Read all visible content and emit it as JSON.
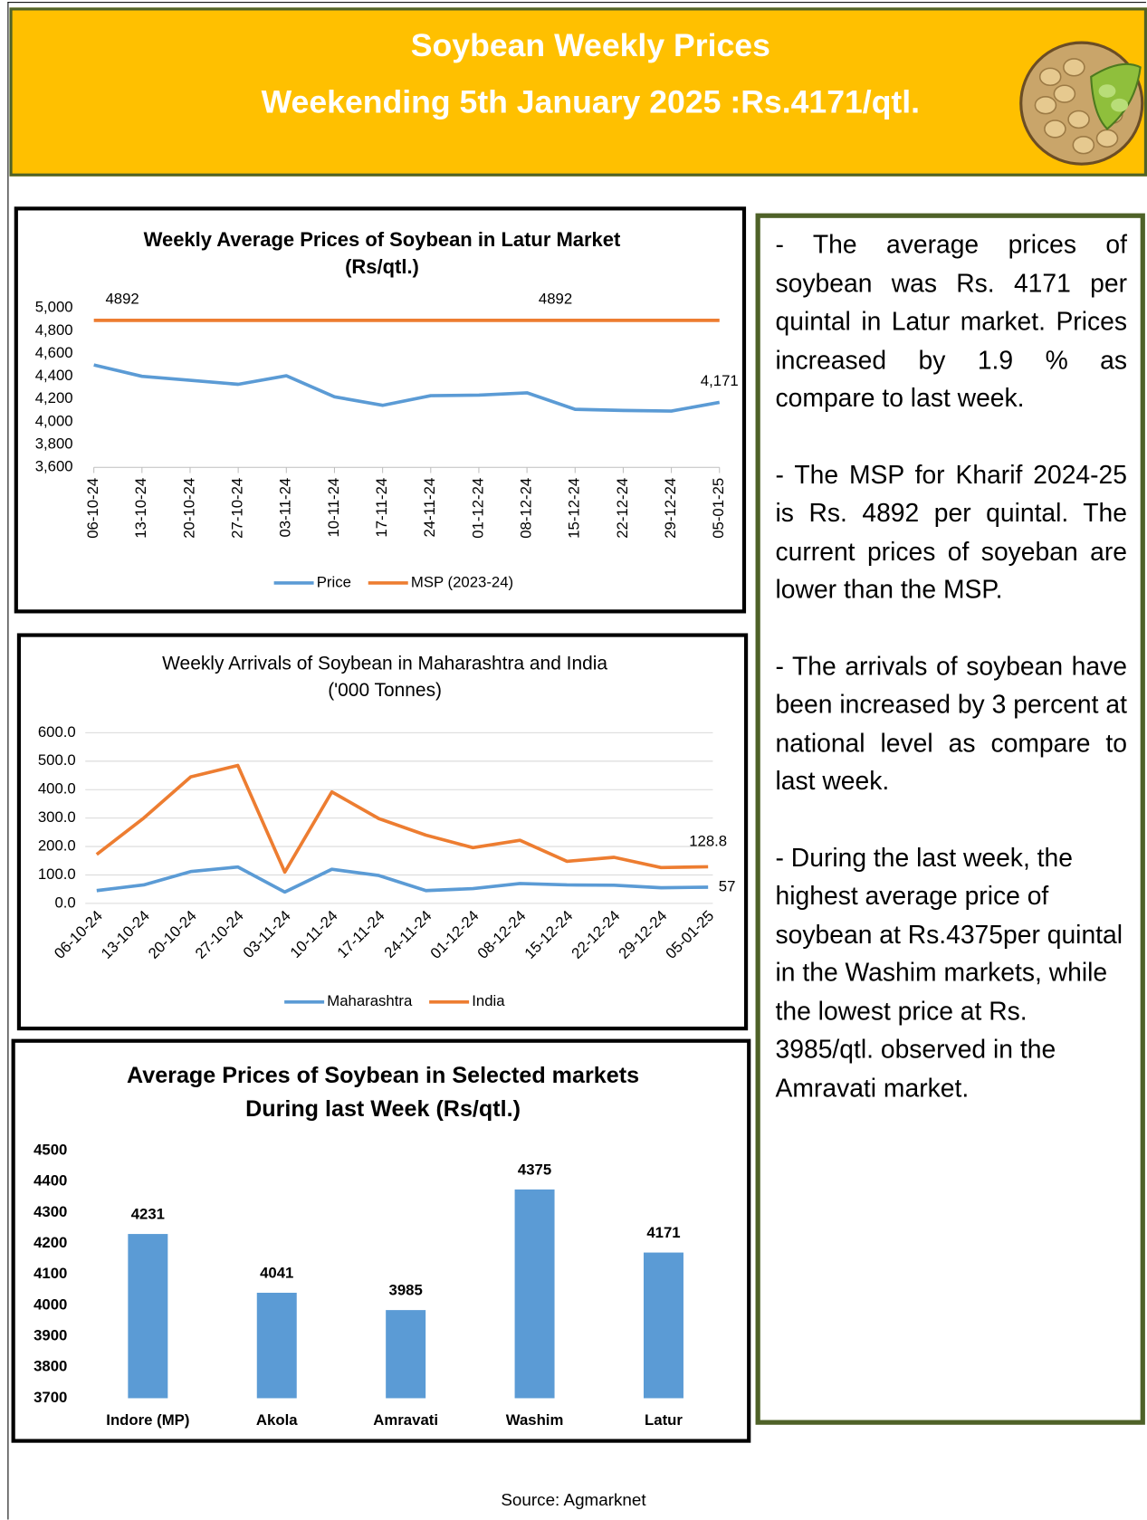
{
  "header": {
    "title": "Soybean Weekly Prices",
    "subtitle": "Weekending 5th January 2025  :Rs.4171/qtl."
  },
  "chart_data": [
    {
      "type": "line",
      "title": "Weekly Average Prices of Soybean in Latur Market",
      "subtitle": "(Rs/qtl.)",
      "categories": [
        "06-10-24",
        "13-10-24",
        "20-10-24",
        "27-10-24",
        "03-11-24",
        "10-11-24",
        "17-11-24",
        "24-11-24",
        "01-12-24",
        "08-12-24",
        "15-12-24",
        "22-12-24",
        "29-12-24",
        "05-01-25"
      ],
      "series": [
        {
          "name": "Price",
          "color": "#5b9bd5",
          "values": [
            4500,
            4400,
            4365,
            4330,
            4405,
            4220,
            4145,
            4230,
            4235,
            4255,
            4110,
            4100,
            4095,
            4171
          ],
          "value_labels": [
            null,
            null,
            null,
            null,
            null,
            null,
            null,
            null,
            null,
            null,
            null,
            null,
            null,
            "4,171"
          ]
        },
        {
          "name": "MSP (2023-24)",
          "color": "#ed7d31",
          "values": [
            4892,
            4892,
            4892,
            4892,
            4892,
            4892,
            4892,
            4892,
            4892,
            4892,
            4892,
            4892,
            4892,
            4892
          ],
          "value_labels": [
            "4892",
            null,
            null,
            null,
            null,
            null,
            null,
            null,
            null,
            "4892",
            null,
            null,
            null,
            null
          ]
        }
      ],
      "ylim": [
        3600,
        5000
      ],
      "yticks": [
        {
          "value": 3600,
          "label": "3,600"
        },
        {
          "value": 3800,
          "label": "3,800"
        },
        {
          "value": 4000,
          "label": "4,000"
        },
        {
          "value": 4200,
          "label": "4,200"
        },
        {
          "value": 4400,
          "label": "4,400"
        },
        {
          "value": 4600,
          "label": "4,600"
        },
        {
          "value": 4800,
          "label": "4,800"
        },
        {
          "value": 5000,
          "label": "5,000"
        }
      ],
      "grid": false
    },
    {
      "type": "line",
      "title": "Weekly Arrivals of Soybean in Maharashtra and India",
      "subtitle": "('000 Tonnes)",
      "categories": [
        "06-10-24",
        "13-10-24",
        "20-10-24",
        "27-10-24",
        "03-11-24",
        "10-11-24",
        "17-11-24",
        "24-11-24",
        "01-12-24",
        "08-12-24",
        "15-12-24",
        "22-12-24",
        "29-12-24",
        "05-01-25"
      ],
      "series": [
        {
          "name": "Maharashtra",
          "color": "#5b9bd5",
          "values": [
            45,
            65,
            112,
            128,
            40,
            120,
            98,
            45,
            52,
            70,
            65,
            64,
            55,
            57
          ],
          "value_labels": [
            null,
            null,
            null,
            null,
            null,
            null,
            null,
            null,
            null,
            null,
            null,
            null,
            null,
            "57"
          ]
        },
        {
          "name": "India",
          "color": "#ed7d31",
          "values": [
            172,
            300,
            445,
            485,
            110,
            392,
            298,
            240,
            196,
            222,
            148,
            162,
            126,
            128.8
          ],
          "value_labels": [
            null,
            null,
            null,
            null,
            null,
            null,
            null,
            null,
            null,
            null,
            null,
            null,
            null,
            "128.8"
          ]
        }
      ],
      "ylim": [
        0,
        600
      ],
      "yticks": [
        {
          "value": 0,
          "label": "0.0"
        },
        {
          "value": 100,
          "label": "100.0"
        },
        {
          "value": 200,
          "label": "200.0"
        },
        {
          "value": 300,
          "label": "300.0"
        },
        {
          "value": 400,
          "label": "400.0"
        },
        {
          "value": 500,
          "label": "500.0"
        },
        {
          "value": 600,
          "label": "600.0"
        }
      ],
      "grid": true
    },
    {
      "type": "bar",
      "title": "Average Prices of Soybean in Selected markets",
      "subtitle": "During last Week (Rs/qtl.)",
      "categories": [
        "Indore (MP)",
        "Akola",
        "Amravati",
        "Washim",
        "Latur"
      ],
      "values": [
        4231,
        4041,
        3985,
        4375,
        4171
      ],
      "color": "#5b9bd5",
      "ylim": [
        3700,
        4500
      ],
      "yticks": [
        3700,
        3800,
        3900,
        4000,
        4100,
        4200,
        4300,
        4400,
        4500
      ],
      "grid": false
    }
  ],
  "notes": [
    "- The average prices of soybean was Rs. 4171 per quintal in Latur market. Prices increased  by 1.9 % as compare to last week.",
    "- The MSP for Kharif 2024-25 is Rs. 4892 per quintal. The current prices of soyeban are lower than the MSP.",
    "- The arrivals of soybean have been increased by 3 percent at national level as compare to last week.",
    "- During the last week, the highest average price of soybean at Rs.4375per quintal in the Washim markets, while the lowest price at Rs. 3985/qtl. observed in the Amravati market."
  ],
  "source": "Source: Agmarknet"
}
